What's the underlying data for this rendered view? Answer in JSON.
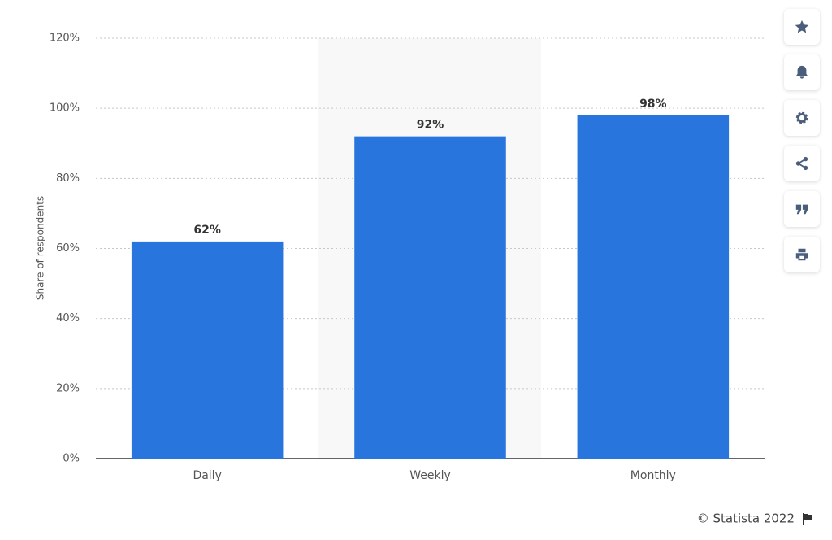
{
  "chart_data": {
    "type": "bar",
    "y_label": "Share of respondents",
    "categories": [
      "Daily",
      "Weekly",
      "Monthly"
    ],
    "values": [
      62,
      92,
      98
    ],
    "value_labels": [
      "62%",
      "92%",
      "98%"
    ],
    "color": "#2876dd",
    "ylim": [
      0,
      120
    ],
    "yticks": [
      {
        "value": 0,
        "label": "0%"
      },
      {
        "value": 20,
        "label": "20%"
      },
      {
        "value": 40,
        "label": "40%"
      },
      {
        "value": 60,
        "label": "60%"
      },
      {
        "value": 80,
        "label": "80%"
      },
      {
        "value": 100,
        "label": "100%"
      },
      {
        "value": 120,
        "label": "120%"
      }
    ],
    "grid": true,
    "credit": "© Statista 2022"
  }
}
